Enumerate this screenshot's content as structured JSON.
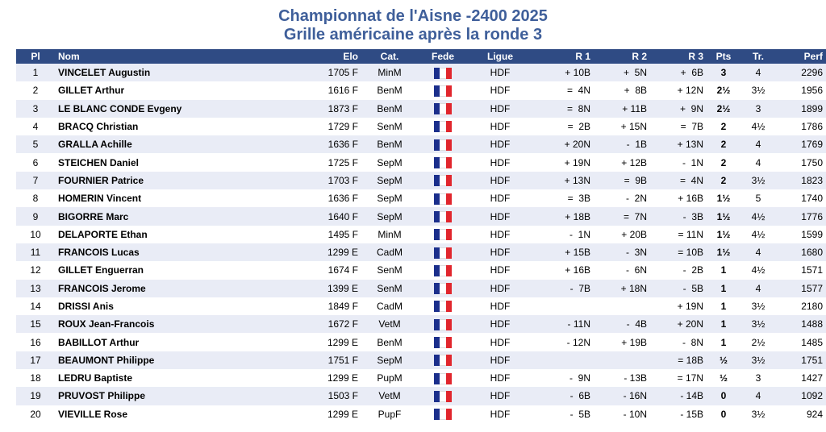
{
  "header": {
    "title": "Championnat de l'Aisne -2400 2025",
    "subtitle": "Grille américaine après la ronde 3"
  },
  "colors": {
    "title": "#3f5f9a",
    "header_bg": "#2f4b84",
    "row_alt": "#e9ecf6"
  },
  "flag_icon": "france-flag-icon",
  "columns": [
    "Pl",
    "Nom",
    "Elo",
    "Cat.",
    "Fede",
    "Ligue",
    "R 1",
    "R 2",
    "R 3",
    "Pts",
    "Tr.",
    "Perf"
  ],
  "rows": [
    {
      "pl": "1",
      "nom": "VINCELET Augustin",
      "elo": "1705 F",
      "cat": "MinM",
      "ligue": "HDF",
      "r1": "+ 10B",
      "r2": "+  5N",
      "r3": "+  6B",
      "pts": "3",
      "tr": "4",
      "perf": "2296"
    },
    {
      "pl": "2",
      "nom": "GILLET Arthur",
      "elo": "1616 F",
      "cat": "BenM",
      "ligue": "HDF",
      "r1": "=  4N",
      "r2": "+  8B",
      "r3": "+ 12N",
      "pts": "2½",
      "tr": "3½",
      "perf": "1956"
    },
    {
      "pl": "3",
      "nom": "LE BLANC CONDE Evgeny",
      "elo": "1873 F",
      "cat": "BenM",
      "ligue": "HDF",
      "r1": "=  8N",
      "r2": "+ 11B",
      "r3": "+  9N",
      "pts": "2½",
      "tr": "3",
      "perf": "1899"
    },
    {
      "pl": "4",
      "nom": "BRACQ Christian",
      "elo": "1729 F",
      "cat": "SenM",
      "ligue": "HDF",
      "r1": "=  2B",
      "r2": "+ 15N",
      "r3": "=  7B",
      "pts": "2",
      "tr": "4½",
      "perf": "1786"
    },
    {
      "pl": "5",
      "nom": "GRALLA Achille",
      "elo": "1636 F",
      "cat": "BenM",
      "ligue": "HDF",
      "r1": "+ 20N",
      "r2": "-  1B",
      "r3": "+ 13N",
      "pts": "2",
      "tr": "4",
      "perf": "1769"
    },
    {
      "pl": "6",
      "nom": "STEICHEN Daniel",
      "elo": "1725 F",
      "cat": "SepM",
      "ligue": "HDF",
      "r1": "+ 19N",
      "r2": "+ 12B",
      "r3": "-  1N",
      "pts": "2",
      "tr": "4",
      "perf": "1750"
    },
    {
      "pl": "7",
      "nom": "FOURNIER Patrice",
      "elo": "1703 F",
      "cat": "SepM",
      "ligue": "HDF",
      "r1": "+ 13N",
      "r2": "=  9B",
      "r3": "=  4N",
      "pts": "2",
      "tr": "3½",
      "perf": "1823"
    },
    {
      "pl": "8",
      "nom": "HOMERIN Vincent",
      "elo": "1636 F",
      "cat": "SepM",
      "ligue": "HDF",
      "r1": "=  3B",
      "r2": "-  2N",
      "r3": "+ 16B",
      "pts": "1½",
      "tr": "5",
      "perf": "1740"
    },
    {
      "pl": "9",
      "nom": "BIGORRE Marc",
      "elo": "1640 F",
      "cat": "SepM",
      "ligue": "HDF",
      "r1": "+ 18B",
      "r2": "=  7N",
      "r3": "-  3B",
      "pts": "1½",
      "tr": "4½",
      "perf": "1776"
    },
    {
      "pl": "10",
      "nom": "DELAPORTE Ethan",
      "elo": "1495 F",
      "cat": "MinM",
      "ligue": "HDF",
      "r1": "-  1N",
      "r2": "+ 20B",
      "r3": "= 11N",
      "pts": "1½",
      "tr": "4½",
      "perf": "1599"
    },
    {
      "pl": "11",
      "nom": "FRANCOIS Lucas",
      "elo": "1299 E",
      "cat": "CadM",
      "ligue": "HDF",
      "r1": "+ 15B",
      "r2": "-  3N",
      "r3": "= 10B",
      "pts": "1½",
      "tr": "4",
      "perf": "1680"
    },
    {
      "pl": "12",
      "nom": "GILLET Enguerran",
      "elo": "1674 F",
      "cat": "SenM",
      "ligue": "HDF",
      "r1": "+ 16B",
      "r2": "-  6N",
      "r3": "-  2B",
      "pts": "1",
      "tr": "4½",
      "perf": "1571"
    },
    {
      "pl": "13",
      "nom": "FRANCOIS Jerome",
      "elo": "1399 E",
      "cat": "SenM",
      "ligue": "HDF",
      "r1": "-  7B",
      "r2": "+ 18N",
      "r3": "-  5B",
      "pts": "1",
      "tr": "4",
      "perf": "1577"
    },
    {
      "pl": "14",
      "nom": "DRISSI Anis",
      "elo": "1849 F",
      "cat": "CadM",
      "ligue": "HDF",
      "r1": "",
      "r2": "",
      "r3": "+ 19N",
      "pts": "1",
      "tr": "3½",
      "perf": "2180"
    },
    {
      "pl": "15",
      "nom": "ROUX Jean-Francois",
      "elo": "1672 F",
      "cat": "VetM",
      "ligue": "HDF",
      "r1": "- 11N",
      "r2": "-  4B",
      "r3": "+ 20N",
      "pts": "1",
      "tr": "3½",
      "perf": "1488"
    },
    {
      "pl": "16",
      "nom": "BABILLOT Arthur",
      "elo": "1299 E",
      "cat": "BenM",
      "ligue": "HDF",
      "r1": "- 12N",
      "r2": "+ 19B",
      "r3": "-  8N",
      "pts": "1",
      "tr": "2½",
      "perf": "1485"
    },
    {
      "pl": "17",
      "nom": "BEAUMONT Philippe",
      "elo": "1751 F",
      "cat": "SepM",
      "ligue": "HDF",
      "r1": "",
      "r2": "",
      "r3": "= 18B",
      "pts": "½",
      "tr": "3½",
      "perf": "1751"
    },
    {
      "pl": "18",
      "nom": "LEDRU Baptiste",
      "elo": "1299 E",
      "cat": "PupM",
      "ligue": "HDF",
      "r1": "-  9N",
      "r2": "- 13B",
      "r3": "= 17N",
      "pts": "½",
      "tr": "3",
      "perf": "1427"
    },
    {
      "pl": "19",
      "nom": "PRUVOST Philippe",
      "elo": "1503 F",
      "cat": "VetM",
      "ligue": "HDF",
      "r1": "-  6B",
      "r2": "- 16N",
      "r3": "- 14B",
      "pts": "0",
      "tr": "4",
      "perf": "1092"
    },
    {
      "pl": "20",
      "nom": "VIEVILLE Rose",
      "elo": "1299 E",
      "cat": "PupF",
      "ligue": "HDF",
      "r1": "-  5B",
      "r2": "- 10N",
      "r3": "- 15B",
      "pts": "0",
      "tr": "3½",
      "perf": "924"
    }
  ]
}
